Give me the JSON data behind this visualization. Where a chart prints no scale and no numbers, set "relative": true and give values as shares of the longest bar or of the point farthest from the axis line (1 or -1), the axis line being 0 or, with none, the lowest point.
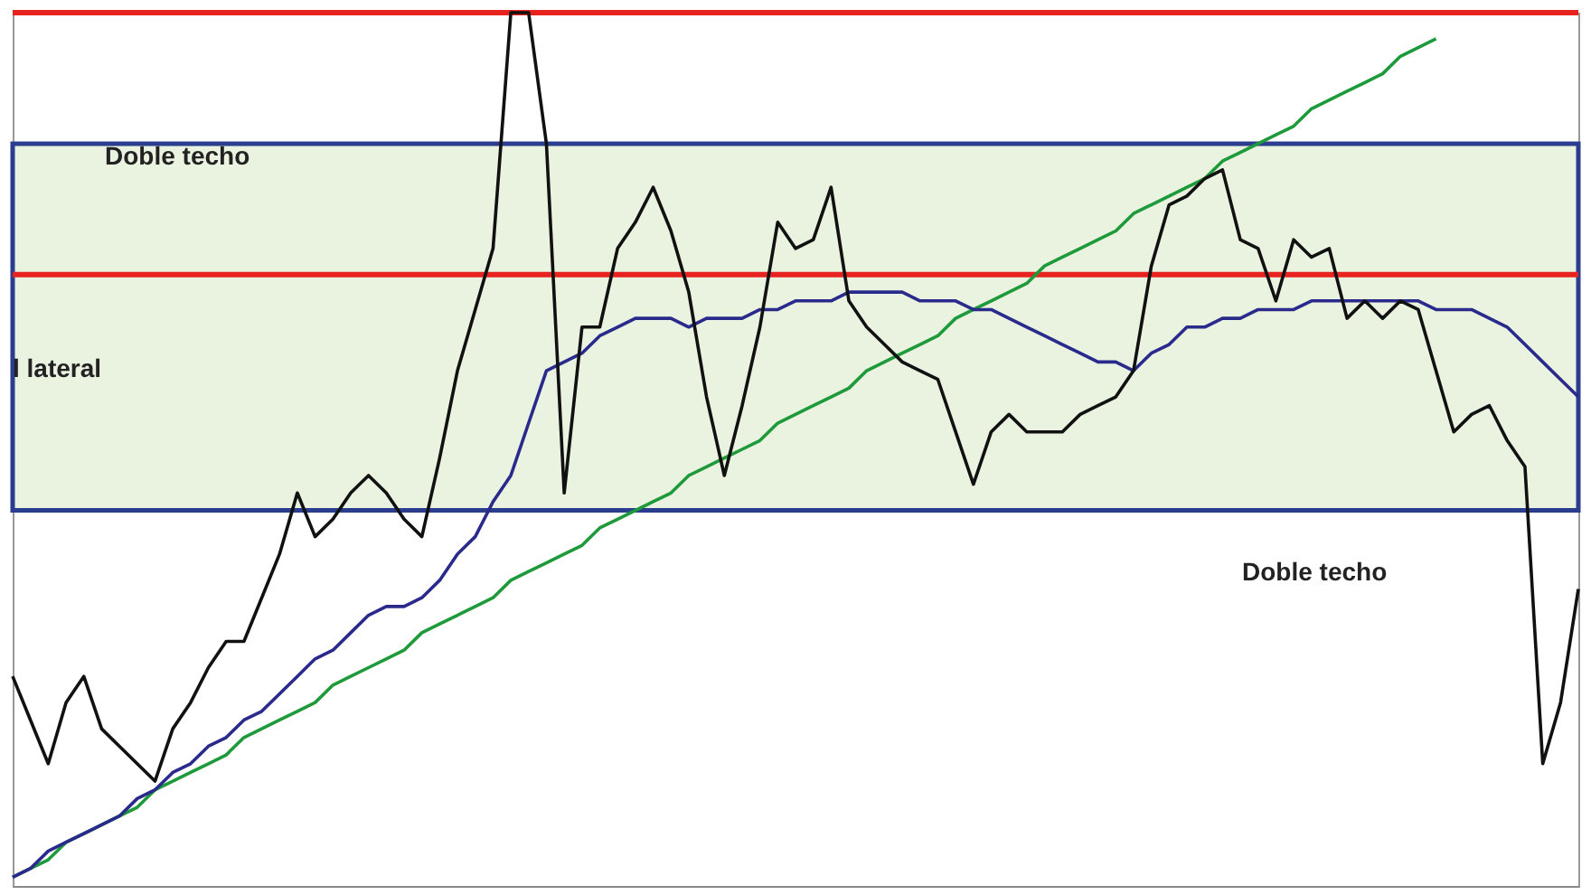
{
  "chart_data": {
    "type": "line",
    "relative": true,
    "tick_labels": false,
    "categories": [
      null,
      null,
      null,
      null,
      null,
      null,
      null,
      null,
      null,
      null,
      null,
      null,
      null,
      null,
      null,
      null,
      null,
      null,
      null,
      null,
      null,
      null,
      null,
      null,
      null,
      null,
      null,
      null,
      null,
      null,
      null,
      null,
      null,
      null,
      null,
      null,
      null,
      null,
      null,
      null,
      null,
      null,
      null,
      null,
      null,
      null,
      null,
      null,
      null,
      null,
      null,
      null,
      null,
      null,
      null,
      null,
      null,
      null,
      null,
      null,
      null,
      null,
      null,
      null,
      null,
      null,
      null,
      null,
      null,
      null,
      null,
      null,
      null,
      null,
      null,
      null,
      null,
      null,
      null,
      null,
      null,
      null,
      null,
      null,
      null,
      null,
      null,
      null,
      null
    ],
    "series": [
      {
        "color": "#111111",
        "values": [
          0.24,
          0.19,
          0.14,
          0.21,
          0.24,
          0.18,
          0.16,
          0.14,
          0.12,
          0.18,
          0.21,
          0.25,
          0.28,
          0.28,
          0.33,
          0.38,
          0.45,
          0.4,
          0.42,
          0.45,
          0.47,
          0.45,
          0.42,
          0.4,
          0.49,
          0.59,
          0.66,
          0.73,
          1,
          1,
          0.85,
          0.45,
          0.64,
          0.64,
          0.73,
          0.76,
          0.8,
          0.75,
          0.68,
          0.56,
          0.47,
          0.55,
          0.64,
          0.76,
          0.73,
          0.74,
          0.8,
          0.67,
          0.64,
          0.62,
          0.6,
          0.59,
          0.58,
          0.52,
          0.46,
          0.52,
          0.54,
          0.52,
          0.52,
          0.52,
          0.54,
          0.55,
          0.56,
          0.59,
          0.71,
          0.78,
          0.79,
          0.81,
          0.82,
          0.74,
          0.73,
          0.67,
          0.74,
          0.72,
          0.73,
          0.65,
          0.67,
          0.65,
          0.67,
          0.66,
          0.59,
          0.52,
          0.54,
          0.55,
          0.51,
          0.48,
          0.14,
          0.21,
          0.34
        ]
      },
      {
        "color": "#2a2a8c",
        "values": [
          0.01,
          0.02,
          0.04,
          0.05,
          0.06,
          0.07,
          0.08,
          0.1,
          0.11,
          0.13,
          0.14,
          0.16,
          0.17,
          0.19,
          0.2,
          0.22,
          0.24,
          0.26,
          0.27,
          0.29,
          0.31,
          0.32,
          0.32,
          0.33,
          0.35,
          0.38,
          0.4,
          0.44,
          0.47,
          0.53,
          0.59,
          0.6,
          0.61,
          0.63,
          0.64,
          0.65,
          0.65,
          0.65,
          0.64,
          0.65,
          0.65,
          0.65,
          0.66,
          0.66,
          0.67,
          0.67,
          0.67,
          0.68,
          0.68,
          0.68,
          0.68,
          0.67,
          0.67,
          0.67,
          0.66,
          0.66,
          0.65,
          0.64,
          0.63,
          0.62,
          0.61,
          0.6,
          0.6,
          0.59,
          0.61,
          0.62,
          0.64,
          0.64,
          0.65,
          0.65,
          0.66,
          0.66,
          0.66,
          0.67,
          0.67,
          0.67,
          0.67,
          0.67,
          0.67,
          0.67,
          0.66,
          0.66,
          0.66,
          0.65,
          0.64,
          0.62,
          0.6,
          0.58,
          0.56
        ]
      },
      {
        "color": "#1e9a3a",
        "values": [
          0.01,
          0.02,
          0.03,
          0.05,
          0.06,
          0.07,
          0.08,
          0.09,
          0.11,
          0.12,
          0.13,
          0.14,
          0.15,
          0.17,
          0.18,
          0.19,
          0.2,
          0.21,
          0.23,
          0.24,
          0.25,
          0.26,
          0.27,
          0.29,
          0.3,
          0.31,
          0.32,
          0.33,
          0.35,
          0.36,
          0.37,
          0.38,
          0.39,
          0.41,
          0.42,
          0.43,
          0.44,
          0.45,
          0.47,
          0.48,
          0.49,
          0.5,
          0.51,
          0.53,
          0.54,
          0.55,
          0.56,
          0.57,
          0.59,
          0.6,
          0.61,
          0.62,
          0.63,
          0.65,
          0.66,
          0.67,
          0.68,
          0.69,
          0.71,
          0.72,
          0.73,
          0.74,
          0.75,
          0.77,
          0.78,
          0.79,
          0.8,
          0.81,
          0.83,
          0.84,
          0.85,
          0.86,
          0.87,
          0.89,
          0.9,
          0.91,
          0.92,
          0.93,
          0.95,
          0.96,
          0.97,
          null,
          null,
          null,
          null,
          null,
          null,
          null,
          null
        ]
      }
    ],
    "bands": [
      {
        "axis": "y",
        "from": 0.43,
        "to": 0.85,
        "color": "#e3f0d8"
      }
    ],
    "ref_lines": [
      {
        "axis": "y",
        "value": 1.0,
        "color": "#e8231f"
      },
      {
        "axis": "y",
        "value": 0.7,
        "color": "#e8231f"
      }
    ],
    "annotations": [
      "Doble techo",
      "l lateral",
      "Doble techo"
    ]
  }
}
